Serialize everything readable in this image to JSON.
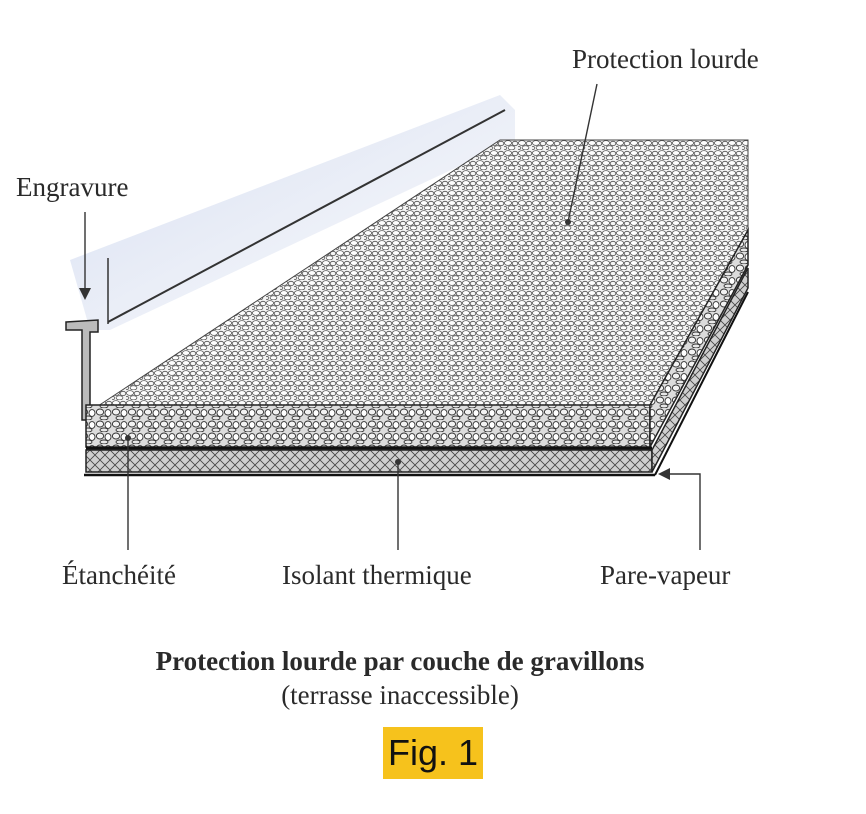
{
  "labels": {
    "protection": "Protection lourde",
    "engravure": "Engravure",
    "etancheite": "Étanchéité",
    "isolant": "Isolant thermique",
    "parevapeur": "Pare-vapeur"
  },
  "caption": {
    "title": "Protection lourde par couche de gravillons",
    "subtitle": "(terrasse inaccessible)"
  },
  "figure_tag": "Fig. 1",
  "colors": {
    "highlight": "#f6c21c",
    "wall_shade": "#dfe6f5",
    "ink": "#2a2a2a"
  }
}
